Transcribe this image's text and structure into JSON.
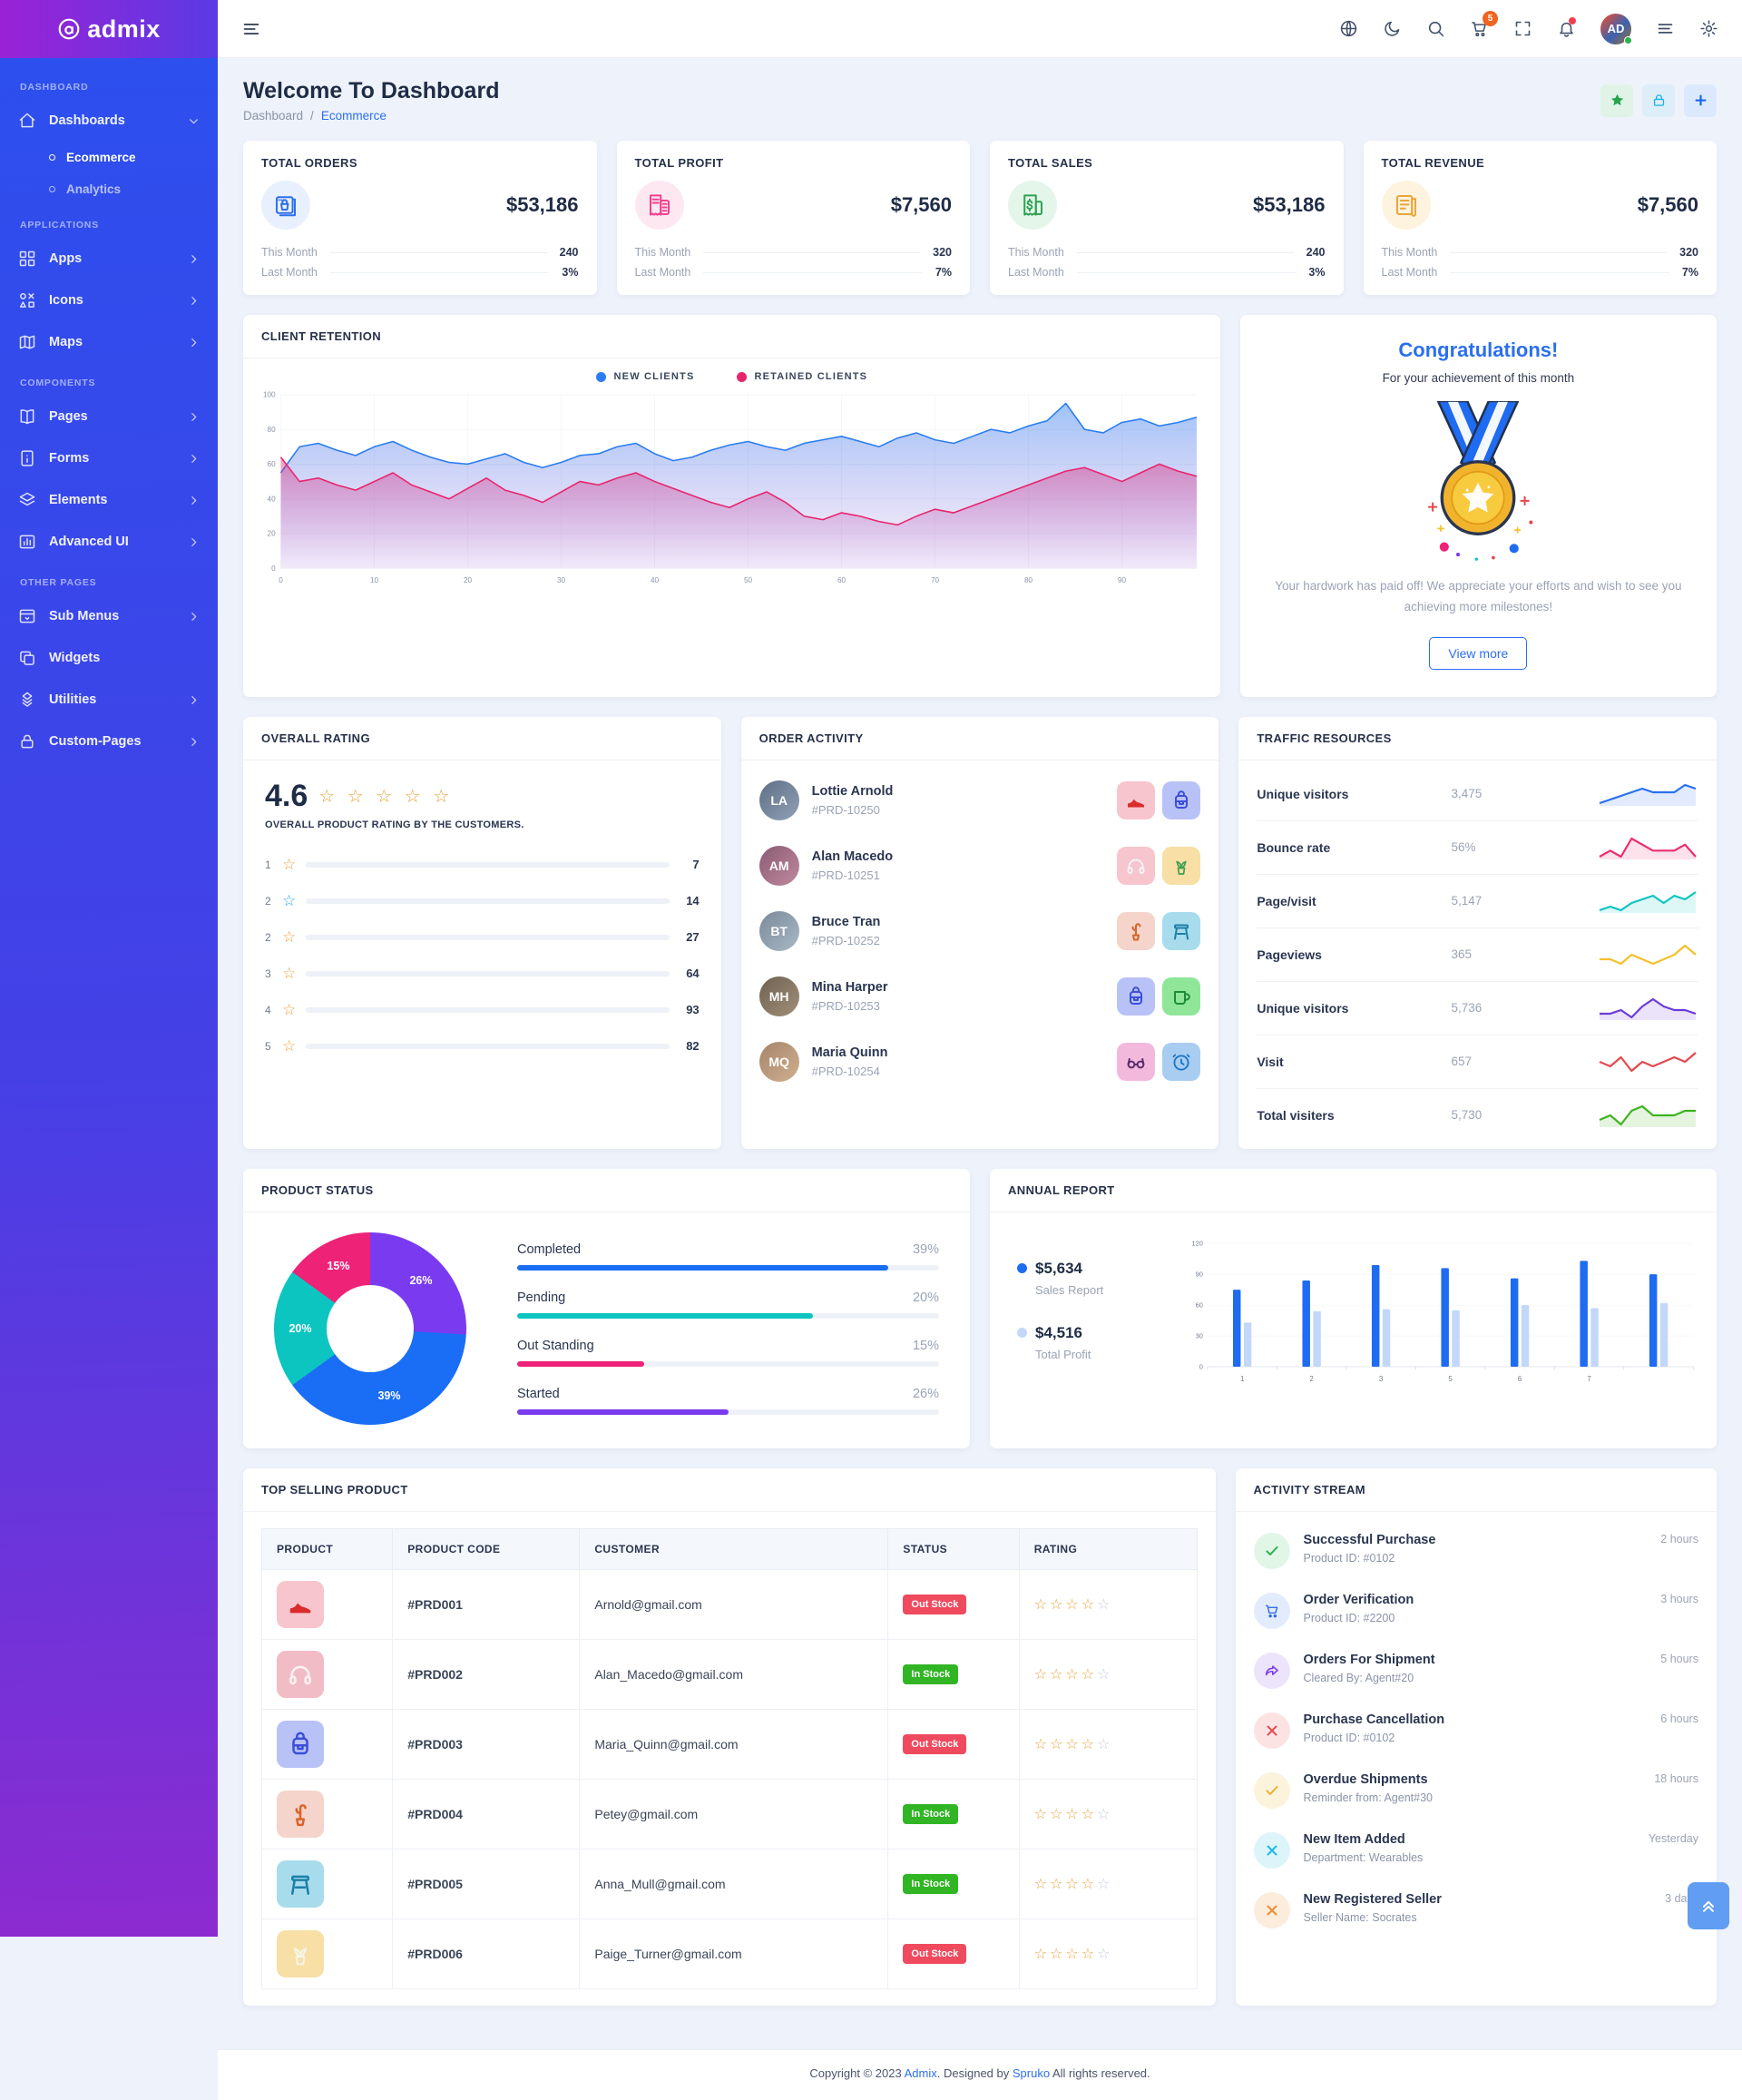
{
  "app": {
    "logo_text": "admix"
  },
  "sidebar": {
    "sections": [
      {
        "label": "DASHBOARD",
        "items": [
          {
            "label": "Dashboards",
            "icon": "home",
            "chevron": "down",
            "active": true,
            "sub": [
              {
                "label": "Ecommerce",
                "active": true
              },
              {
                "label": "Analytics",
                "active": false
              }
            ]
          }
        ]
      },
      {
        "label": "APPLICATIONS",
        "items": [
          {
            "label": "Apps",
            "icon": "apps",
            "chevron": "right"
          },
          {
            "label": "Icons",
            "icon": "shapes",
            "chevron": "right"
          },
          {
            "label": "Maps",
            "icon": "map",
            "chevron": "right"
          }
        ]
      },
      {
        "label": "COMPONENTS",
        "items": [
          {
            "label": "Pages",
            "icon": "book",
            "chevron": "right"
          },
          {
            "label": "Forms",
            "icon": "file",
            "chevron": "right"
          },
          {
            "label": "Elements",
            "icon": "layers",
            "chevron": "right"
          },
          {
            "label": "Advanced UI",
            "icon": "chartbox",
            "chevron": "right"
          }
        ]
      },
      {
        "label": "OTHER PAGES",
        "items": [
          {
            "label": "Sub Menus",
            "icon": "window",
            "chevron": "right"
          },
          {
            "label": "Widgets",
            "icon": "copy",
            "chevron": ""
          },
          {
            "label": "Utilities",
            "icon": "diamond",
            "chevron": "right"
          },
          {
            "label": "Custom-Pages",
            "icon": "lock",
            "chevron": "right"
          }
        ]
      }
    ]
  },
  "header": {
    "cart_badge": "5",
    "icons": [
      "globe",
      "moon",
      "search",
      "cart",
      "fullscreen",
      "bell",
      "avatar",
      "list",
      "gear"
    ],
    "avatar_initials": "AD"
  },
  "page": {
    "title": "Welcome To Dashboard",
    "breadcrumb": {
      "parent": "Dashboard",
      "separator": "/",
      "current": "Ecommerce"
    },
    "actions": [
      {
        "icon": "star",
        "color": "#27a34f",
        "bg": "#e0f3e6"
      },
      {
        "icon": "lock",
        "color": "#17b0e8",
        "bg": "#ddeef8"
      },
      {
        "icon": "plus",
        "color": "#1a66f0",
        "bg": "#dce9fc"
      }
    ]
  },
  "stats": [
    {
      "title": "TOTAL ORDERS",
      "value": "$53,186",
      "icon": "orders",
      "color": "#2f6fed",
      "bg": "#e8f0fd",
      "rows": [
        {
          "label": "This Month",
          "value": "240"
        },
        {
          "label": "Last Month",
          "value": "3%"
        }
      ]
    },
    {
      "title": "TOTAL PROFIT",
      "value": "$7,560",
      "icon": "profit",
      "color": "#f0408c",
      "bg": "#fde8f2",
      "rows": [
        {
          "label": "This Month",
          "value": "320"
        },
        {
          "label": "Last Month",
          "value": "7%"
        }
      ]
    },
    {
      "title": "TOTAL SALES",
      "value": "$53,186",
      "icon": "sales",
      "color": "#2fa152",
      "bg": "#e4f6ea",
      "rows": [
        {
          "label": "This Month",
          "value": "240"
        },
        {
          "label": "Last Month",
          "value": "3%"
        }
      ]
    },
    {
      "title": "TOTAL REVENUE",
      "value": "$7,560",
      "icon": "revenue",
      "color": "#e9a63a",
      "bg": "#fdf3df",
      "rows": [
        {
          "label": "This Month",
          "value": "320"
        },
        {
          "label": "Last Month",
          "value": "7%"
        }
      ]
    }
  ],
  "client_retention": {
    "title": "CLIENT RETENTION"
  },
  "congrats": {
    "title": "Congratulations!",
    "subtitle": "For your achievement of this month",
    "message": "Your hardwork has paid off! We appreciate your efforts and wish to see you achieving more milestones!",
    "button": "View more"
  },
  "overall_rating": {
    "title": "OVERALL RATING",
    "score": "4.6",
    "caption": "OVERALL PRODUCT RATING BY THE CUSTOMERS."
  },
  "order_activity": {
    "title": "ORDER ACTIVITY",
    "items": [
      {
        "name": "Lottie Arnold",
        "code": "#PRD-10250",
        "initials": "LA",
        "avatar_bg": "linear-gradient(135deg,#5f6f86,#90a1b6)",
        "products": [
          {
            "icon": "shoe",
            "bg": "#f6c5cd",
            "color": "#d92c2c"
          },
          {
            "icon": "backpack",
            "bg": "#b9c2f7",
            "color": "#3b4fd8"
          }
        ]
      },
      {
        "name": "Alan Macedo",
        "code": "#PRD-10251",
        "initials": "AM",
        "avatar_bg": "linear-gradient(135deg,#8a5a72,#c08a9e)",
        "products": [
          {
            "icon": "headphones",
            "bg": "#f6c5cd",
            "color": "#f0f3f8"
          },
          {
            "icon": "plant",
            "bg": "#f7dfa6",
            "color": "#3f9e4e"
          }
        ]
      },
      {
        "name": "Bruce Tran",
        "code": "#PRD-10252",
        "initials": "BT",
        "avatar_bg": "linear-gradient(135deg,#7a8a99,#a8b8c5)",
        "products": [
          {
            "icon": "cactus",
            "bg": "#f5d4cb",
            "color": "#d9632a"
          },
          {
            "icon": "stool",
            "bg": "#a8dcec",
            "color": "#1a7fa8"
          }
        ]
      },
      {
        "name": "Mina Harper",
        "code": "#PRD-10253",
        "initials": "MH",
        "avatar_bg": "linear-gradient(135deg,#6f6052,#a09078)",
        "products": [
          {
            "icon": "backpack",
            "bg": "#b9c2f7",
            "color": "#3b4fd8"
          },
          {
            "icon": "mug",
            "bg": "#8fe698",
            "color": "#1f8a3a"
          }
        ]
      },
      {
        "name": "Maria Quinn",
        "code": "#PRD-10254",
        "initials": "MQ",
        "avatar_bg": "linear-gradient(135deg,#a5846a,#d0b090)",
        "products": [
          {
            "icon": "glasses",
            "bg": "#f3b9dd",
            "color": "#5a2d6e"
          },
          {
            "icon": "clock",
            "bg": "#a8cdf0",
            "color": "#1a74c4"
          }
        ]
      }
    ]
  },
  "traffic": {
    "title": "TRAFFIC RESOURCES",
    "rows": [
      {
        "label": "Unique visitors",
        "value": "3,475"
      },
      {
        "label": "Bounce rate",
        "value": "56%"
      },
      {
        "label": "Page/visit",
        "value": "5,147"
      },
      {
        "label": "Pageviews",
        "value": "365"
      },
      {
        "label": "Unique visitors",
        "value": "5,736"
      },
      {
        "label": "Visit",
        "value": "657"
      },
      {
        "label": "Total visiters",
        "value": "5,730"
      }
    ]
  },
  "product_status": {
    "title": "PRODUCT STATUS"
  },
  "annual_report": {
    "title": "ANNUAL REPORT"
  },
  "top_selling": {
    "title": "TOP SELLING PRODUCT",
    "columns": [
      "PRODUCT",
      "PRODUCT CODE",
      "CUSTOMER",
      "STATUS",
      "RATING"
    ],
    "rows": [
      {
        "icon": "shoe",
        "tile_bg": "#f6c5cd",
        "tile_color": "#d92c2c",
        "code": "#PRD001",
        "customer": "Arnold@gmail.com",
        "status": "Out Stock",
        "status_type": "out",
        "stars": 4
      },
      {
        "icon": "headphones",
        "tile_bg": "#f2bcc6",
        "tile_color": "#fdf2f4",
        "code": "#PRD002",
        "customer": "Alan_Macedo@gmail.com",
        "status": "In Stock",
        "status_type": "in",
        "stars": 4
      },
      {
        "icon": "backpack",
        "tile_bg": "#b9c2f7",
        "tile_color": "#3b4fd8",
        "code": "#PRD003",
        "customer": "Maria_Quinn@gmail.com",
        "status": "Out Stock",
        "status_type": "out",
        "stars": 4
      },
      {
        "icon": "cactus",
        "tile_bg": "#f5d4cb",
        "tile_color": "#d9632a",
        "code": "#PRD004",
        "customer": "Petey@gmail.com",
        "status": "In Stock",
        "status_type": "in",
        "stars": 4
      },
      {
        "icon": "stool",
        "tile_bg": "#a8dcec",
        "tile_color": "#1a7fa8",
        "code": "#PRD005",
        "customer": "Anna_Mull@gmail.com",
        "status": "In Stock",
        "status_type": "in",
        "stars": 4
      },
      {
        "icon": "plant",
        "tile_bg": "#f7dfa6",
        "tile_color": "#f8f4e8",
        "code": "#PRD006",
        "customer": "Paige_Turner@gmail.com",
        "status": "Out Stock",
        "status_type": "out",
        "stars": 4
      }
    ]
  },
  "activity_stream": {
    "title": "ACTIVITY STREAM",
    "items": [
      {
        "title": "Successful Purchase",
        "detail": "Product ID: #0102",
        "time": "2 hours",
        "icon": "check",
        "color": "#2bb24c",
        "bg": "#e2f6e8"
      },
      {
        "title": "Order Verification",
        "detail": "Product ID: #2200",
        "time": "3 hours",
        "icon": "cart",
        "color": "#2563eb",
        "bg": "#e3ecfc"
      },
      {
        "title": "Orders For Shipment",
        "detail": "Cleared By: Agent#20",
        "time": "5 hours",
        "icon": "share",
        "color": "#7c3aed",
        "bg": "#ece4fb"
      },
      {
        "title": "Purchase Cancellation",
        "detail": "Product ID: #0102",
        "time": "6 hours",
        "icon": "x",
        "color": "#e5484d",
        "bg": "#fbe3e4"
      },
      {
        "title": "Overdue Shipments",
        "detail": "Reminder from: Agent#30",
        "time": "18 hours",
        "icon": "check",
        "color": "#e8b32c",
        "bg": "#fbf3dc"
      },
      {
        "title": "New Item Added",
        "detail": "Department: Wearables",
        "time": "Yesterday",
        "icon": "x",
        "color": "#1ab8e8",
        "bg": "#def4fb"
      },
      {
        "title": "New Registered Seller",
        "detail": "Seller Name: Socrates",
        "time": "3 days",
        "icon": "x",
        "color": "#ef8b31",
        "bg": "#fcecdc"
      }
    ]
  },
  "footer": {
    "prefix": "Copyright © 2023",
    "brand": "Admix",
    "middle": ". Designed by",
    "brand2": "Spruko",
    "suffix": "All rights reserved."
  },
  "chart_data": [
    {
      "id": "client_retention",
      "type": "area",
      "title": "CLIENT RETENTION",
      "x": [
        0,
        2,
        4,
        6,
        8,
        10,
        12,
        14,
        16,
        18,
        20,
        22,
        24,
        26,
        28,
        30,
        32,
        34,
        36,
        38,
        40,
        42,
        44,
        46,
        48,
        50,
        52,
        54,
        56,
        58,
        60,
        62,
        64,
        66,
        68,
        70,
        72,
        74,
        76,
        78,
        80,
        82,
        84,
        86,
        88,
        90,
        92,
        94,
        96,
        98
      ],
      "series": [
        {
          "name": "NEW CLIENTS",
          "color": "#2a7df0",
          "values": [
            55,
            70,
            72,
            68,
            65,
            70,
            73,
            68,
            64,
            61,
            60,
            63,
            66,
            61,
            58,
            61,
            65,
            66,
            70,
            72,
            66,
            62,
            64,
            68,
            71,
            73,
            70,
            68,
            72,
            74,
            76,
            73,
            70,
            75,
            78,
            74,
            72,
            76,
            80,
            78,
            82,
            85,
            95,
            80,
            78,
            84,
            86,
            82,
            84,
            87
          ]
        },
        {
          "name": "RETAINED CLIENTS",
          "color": "#e8246e",
          "values": [
            64,
            50,
            52,
            48,
            45,
            50,
            55,
            48,
            44,
            40,
            46,
            52,
            45,
            42,
            38,
            44,
            50,
            48,
            52,
            55,
            50,
            46,
            42,
            38,
            35,
            40,
            44,
            38,
            30,
            28,
            32,
            30,
            27,
            25,
            30,
            34,
            32,
            36,
            40,
            44,
            48,
            52,
            56,
            58,
            54,
            50,
            55,
            60,
            56,
            53
          ]
        }
      ],
      "ylim": [
        0,
        100
      ],
      "yticks": [
        0,
        20,
        40,
        60,
        80,
        100
      ],
      "xticks": [
        0,
        10,
        20,
        30,
        40,
        50,
        60,
        70,
        80,
        90
      ],
      "grid": true,
      "legend_position": "top"
    },
    {
      "id": "overall_rating",
      "type": "bar",
      "orientation": "horizontal",
      "rows": [
        {
          "star": "1",
          "star_color": "#e8a33d",
          "color": "#f4504f",
          "value": 7,
          "percent": 17
        },
        {
          "star": "2",
          "star_color": "#28a9e0",
          "color": "#28a9e0",
          "value": 14,
          "percent": 21
        },
        {
          "star": "2",
          "star_color": "#e8a33d",
          "color": "#1f5cf0",
          "value": 27,
          "percent": 34
        },
        {
          "star": "3",
          "star_color": "#e8a33d",
          "color": "#e8a33d",
          "value": 64,
          "percent": 51
        },
        {
          "star": "4",
          "star_color": "#e8a33d",
          "color": "#0fc2b4",
          "value": 93,
          "percent": 60
        },
        {
          "star": "5",
          "star_color": "#e8a33d",
          "color": "#3db31f",
          "value": 82,
          "percent": 68
        }
      ]
    },
    {
      "id": "product_status",
      "type": "pie",
      "donut": true,
      "slices": [
        {
          "label": "Started",
          "value": 26,
          "color": "#7a3bf0"
        },
        {
          "label": "Completed",
          "value": 39,
          "color": "#1a6ef5"
        },
        {
          "label": "Pending",
          "value": 20,
          "color": "#0cc5c0"
        },
        {
          "label": "Out Standing",
          "value": 15,
          "color": "#ee2277"
        }
      ],
      "legend": [
        {
          "label": "Completed",
          "value": "39%",
          "color": "#1a6ef5",
          "bar_percent": 88
        },
        {
          "label": "Pending",
          "value": "20%",
          "color": "#0cc5c0",
          "bar_percent": 70
        },
        {
          "label": "Out Standing",
          "value": "15%",
          "color": "#ee2277",
          "bar_percent": 30
        },
        {
          "label": "Started",
          "value": "26%",
          "color": "#7a3bf0",
          "bar_percent": 50
        }
      ]
    },
    {
      "id": "annual_report",
      "type": "bar",
      "categories": [
        "1",
        "2",
        "3",
        "5",
        "6",
        "7",
        ""
      ],
      "series": [
        {
          "name": "Sales Report",
          "total": "$5,634",
          "color": "#1f6bf2",
          "values": [
            75,
            84,
            99,
            96,
            86,
            103,
            90
          ]
        },
        {
          "name": "Total Profit",
          "total": "$4,516",
          "color": "#c3d8f8",
          "values": [
            43,
            54,
            56,
            55,
            60,
            57,
            62
          ]
        }
      ],
      "ylim": [
        0,
        120
      ],
      "yticks": [
        0,
        30,
        60,
        90,
        120
      ],
      "grid": true
    },
    {
      "id": "traffic_sparklines",
      "type": "line",
      "sparklines": [
        {
          "name": "Unique visitors",
          "color": "#2a6ff0",
          "fill": true,
          "values": [
            1,
            2,
            3,
            4,
            5,
            4,
            4,
            4,
            6,
            5
          ]
        },
        {
          "name": "Bounce rate",
          "color": "#ee2c6e",
          "fill": true,
          "values": [
            2,
            3,
            2,
            5,
            4,
            3,
            3,
            3,
            4,
            2
          ]
        },
        {
          "name": "Page/visit",
          "color": "#0cc5c0",
          "fill": true,
          "values": [
            1,
            2,
            1,
            3,
            4,
            5,
            3,
            5,
            4,
            6
          ]
        },
        {
          "name": "Pageviews",
          "color": "#f5c02c",
          "fill": false,
          "values": [
            2,
            2,
            1,
            3,
            2,
            1,
            2,
            3,
            5,
            3
          ]
        },
        {
          "name": "Unique visitors",
          "color": "#6a3bd8",
          "fill": true,
          "values": [
            2,
            2,
            3,
            1,
            4,
            6,
            4,
            3,
            3,
            2
          ]
        },
        {
          "name": "Visit",
          "color": "#e5484d",
          "fill": false,
          "values": [
            3,
            2,
            4,
            1,
            3,
            2,
            3,
            4,
            3,
            5
          ]
        },
        {
          "name": "Total visiters",
          "color": "#3db31f",
          "fill": true,
          "values": [
            2,
            3,
            1,
            4,
            5,
            3,
            3,
            3,
            4,
            4
          ]
        }
      ]
    }
  ]
}
